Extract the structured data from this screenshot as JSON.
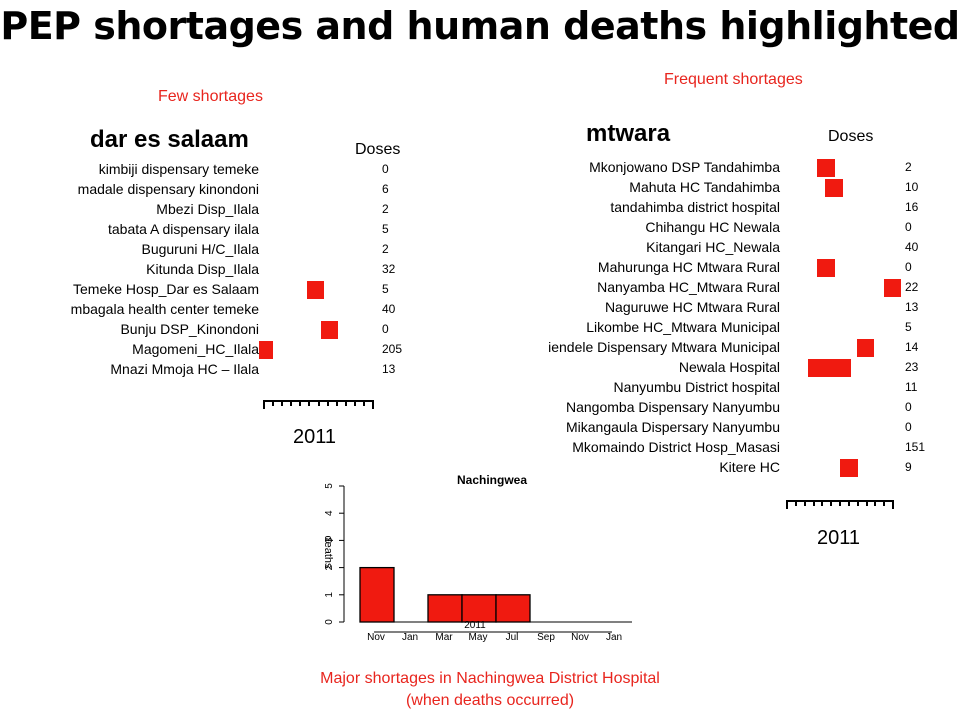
{
  "title": "PEP shortages and human deaths highlighted",
  "notes": {
    "few_shortages": "Few shortages",
    "frequent_shortages": "Frequent shortages"
  },
  "colors": {
    "marker": "#f01a10",
    "note": "#e8251e"
  },
  "caption": {
    "line1": "Major shortages in Nachingwea District Hospital",
    "line2": "(when deaths occurred)"
  },
  "chart_data": [
    {
      "type": "timeline",
      "title": "dar es salaam",
      "doses_header": "Doses",
      "year_label": "2011",
      "rows": [
        {
          "name": "kimbiji dispensary temeke",
          "doses": "0",
          "shortages": []
        },
        {
          "name": "madale dispensary kinondoni",
          "doses": "6",
          "shortages": []
        },
        {
          "name": "Mbezi Disp_Ilala",
          "doses": "2",
          "shortages": []
        },
        {
          "name": "tabata A dispensary ilala",
          "doses": "5",
          "shortages": []
        },
        {
          "name": "Buguruni H/C_Ilala",
          "doses": "2",
          "shortages": []
        },
        {
          "name": "Kitunda Disp_Ilala",
          "doses": "32",
          "shortages": []
        },
        {
          "name": "Temeke Hosp_Dar es Salaam",
          "doses": "5",
          "shortages": [
            [
              0.4,
              0.56
            ]
          ]
        },
        {
          "name": "mbagala health center temeke",
          "doses": "40",
          "shortages": []
        },
        {
          "name": "Bunju DSP_Kinondoni",
          "doses": "0",
          "shortages": [
            [
              0.53,
              0.69
            ]
          ]
        },
        {
          "name": "Magomeni_HC_Ilala",
          "doses": "205",
          "shortages": [
            [
              -0.04,
              0.09
            ]
          ]
        },
        {
          "name": "Mnazi Mmoja HC – Ilala",
          "doses": "13",
          "shortages": []
        }
      ]
    },
    {
      "type": "timeline",
      "title": "mtwara",
      "doses_header": "Doses",
      "year_label": "2011",
      "rows": [
        {
          "name": "Mkonjowano DSP Tandahimba",
          "doses": "2",
          "shortages": [
            [
              0.29,
              0.46
            ]
          ]
        },
        {
          "name": "Mahuta HC Tandahimba",
          "doses": "10",
          "shortages": [
            [
              0.37,
              0.54
            ]
          ]
        },
        {
          "name": "tandahimba district hospital",
          "doses": "16",
          "shortages": []
        },
        {
          "name": "Chihangu HC Newala",
          "doses": "0",
          "shortages": []
        },
        {
          "name": "Kitangari HC_Newala",
          "doses": "40",
          "shortages": []
        },
        {
          "name": "Mahurunga  HC Mtwara Rural",
          "doses": "0",
          "shortages": [
            [
              0.29,
              0.46
            ]
          ]
        },
        {
          "name": "Nanyamba HC_Mtwara Rural",
          "doses": "22",
          "shortages": [
            [
              0.92,
              1.08
            ]
          ]
        },
        {
          "name": "Naguruwe HC Mtwara Rural",
          "doses": "13",
          "shortages": []
        },
        {
          "name": "Likombe HC_Mtwara Municipal",
          "doses": "5",
          "shortages": []
        },
        {
          "name": "iendele Dispensary Mtwara Municipal",
          "doses": "14",
          "shortages": [
            [
              0.67,
              0.83
            ]
          ]
        },
        {
          "name": "Newala Hospital",
          "doses": "23",
          "shortages": [
            [
              0.21,
              0.61
            ]
          ]
        },
        {
          "name": "Nanyumbu District hospital",
          "doses": "11",
          "shortages": []
        },
        {
          "name": "Nangomba Dispensary Nanyumbu",
          "doses": "0",
          "shortages": []
        },
        {
          "name": "Mikangaula Dispersary Nanyumbu",
          "doses": "0",
          "shortages": []
        },
        {
          "name": "Mkomaindo District Hosp_Masasi",
          "doses": "151",
          "shortages": []
        },
        {
          "name": "Kitere HC",
          "doses": "9",
          "shortages": [
            [
              0.51,
              0.68
            ]
          ]
        }
      ]
    },
    {
      "type": "bar",
      "title": "Nachingwea",
      "ylabel": "deaths",
      "xlabel": "2011",
      "ylim": [
        0,
        5
      ],
      "yticks": [
        "0",
        "1",
        "2",
        "3",
        "4",
        "5"
      ],
      "tick_labels": [
        "Nov",
        "Jan",
        "Mar",
        "May",
        "Jul",
        "Sep",
        "Nov",
        "Jan"
      ],
      "bars": [
        {
          "start": 0,
          "end": 1,
          "value": 2
        },
        {
          "start": 2,
          "end": 3,
          "value": 1
        },
        {
          "start": 3,
          "end": 4,
          "value": 1
        },
        {
          "start": 4,
          "end": 5,
          "value": 1
        }
      ],
      "x_count": 8
    }
  ]
}
